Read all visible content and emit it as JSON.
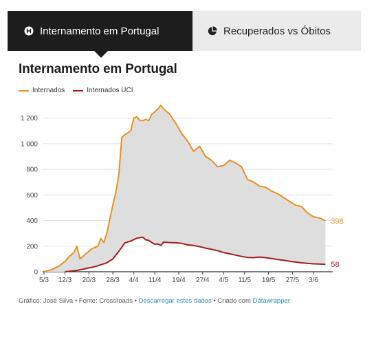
{
  "tabs": [
    {
      "label": "Internamento em Portugal",
      "icon": "globe-icon",
      "active": true
    },
    {
      "label": "Recuperados vs Óbitos",
      "icon": "pie-chart-icon",
      "active": false
    }
  ],
  "footer": {
    "prefix": "Gráfico: José Silva • Fonte: Crossroads • ",
    "download_link": "Descarregar estes dados",
    "middle": " • Criado com ",
    "datawrapper_link": "Datawrapper"
  },
  "colors": {
    "internados": "#e8911f",
    "uci": "#a31d1d",
    "fill": "#dedede",
    "link": "#2a8fb0"
  },
  "chart_data": {
    "type": "line",
    "title": "Internamento em Portugal",
    "xlabel": "",
    "ylabel": "",
    "ylim": [
      0,
      1300
    ],
    "yticks": [
      0,
      200,
      400,
      600,
      800,
      1000,
      1200
    ],
    "ytick_labels": [
      "0",
      "200",
      "400",
      "600",
      "800",
      "1 000",
      "1 200"
    ],
    "x_start": "5/3",
    "xticks": [
      {
        "day": 0,
        "label": "5/3"
      },
      {
        "day": 7,
        "label": "12/3"
      },
      {
        "day": 15,
        "label": "20/3"
      },
      {
        "day": 23,
        "label": "28/3"
      },
      {
        "day": 30,
        "label": "4/4"
      },
      {
        "day": 37,
        "label": "11/4"
      },
      {
        "day": 45,
        "label": "19/4"
      },
      {
        "day": 53,
        "label": "27/4"
      },
      {
        "day": 60,
        "label": "4/5"
      },
      {
        "day": 67,
        "label": "11/5"
      },
      {
        "day": 75,
        "label": "19/5"
      },
      {
        "day": 83,
        "label": "27/5"
      },
      {
        "day": 90,
        "label": "3/6"
      }
    ],
    "x_range": [
      0,
      96
    ],
    "legend_position": "top-left",
    "grid": true,
    "area_between_series": true,
    "series": [
      {
        "name": "Internados",
        "color": "#e8911f",
        "end_label": "398",
        "points": [
          [
            0,
            0
          ],
          [
            3,
            20
          ],
          [
            5,
            45
          ],
          [
            7,
            80
          ],
          [
            8,
            110
          ],
          [
            10,
            150
          ],
          [
            11,
            200
          ],
          [
            12,
            100
          ],
          [
            14,
            140
          ],
          [
            16,
            180
          ],
          [
            18,
            200
          ],
          [
            19,
            260
          ],
          [
            20,
            230
          ],
          [
            21,
            300
          ],
          [
            23,
            520
          ],
          [
            24,
            620
          ],
          [
            25,
            760
          ],
          [
            26,
            1050
          ],
          [
            27,
            1070
          ],
          [
            29,
            1100
          ],
          [
            30,
            1200
          ],
          [
            31,
            1210
          ],
          [
            32,
            1180
          ],
          [
            33,
            1180
          ],
          [
            34,
            1190
          ],
          [
            35,
            1180
          ],
          [
            36,
            1230
          ],
          [
            38,
            1270
          ],
          [
            39,
            1300
          ],
          [
            40,
            1270
          ],
          [
            42,
            1230
          ],
          [
            44,
            1160
          ],
          [
            46,
            1080
          ],
          [
            48,
            1020
          ],
          [
            50,
            940
          ],
          [
            52,
            980
          ],
          [
            54,
            900
          ],
          [
            56,
            870
          ],
          [
            58,
            820
          ],
          [
            60,
            830
          ],
          [
            62,
            870
          ],
          [
            64,
            850
          ],
          [
            66,
            820
          ],
          [
            68,
            720
          ],
          [
            70,
            700
          ],
          [
            72,
            670
          ],
          [
            74,
            660
          ],
          [
            76,
            630
          ],
          [
            78,
            610
          ],
          [
            80,
            580
          ],
          [
            82,
            550
          ],
          [
            84,
            520
          ],
          [
            86,
            510
          ],
          [
            88,
            460
          ],
          [
            90,
            430
          ],
          [
            92,
            420
          ],
          [
            94,
            398
          ]
        ]
      },
      {
        "name": "Internados UCI",
        "color": "#a31d1d",
        "end_label": "58",
        "points": [
          [
            7,
            0
          ],
          [
            9,
            5
          ],
          [
            11,
            10
          ],
          [
            13,
            20
          ],
          [
            15,
            30
          ],
          [
            17,
            40
          ],
          [
            19,
            55
          ],
          [
            21,
            70
          ],
          [
            23,
            100
          ],
          [
            25,
            160
          ],
          [
            27,
            225
          ],
          [
            29,
            240
          ],
          [
            31,
            262
          ],
          [
            33,
            270
          ],
          [
            34,
            250
          ],
          [
            35,
            245
          ],
          [
            36,
            228
          ],
          [
            37,
            215
          ],
          [
            38,
            218
          ],
          [
            39,
            205
          ],
          [
            40,
            232
          ],
          [
            42,
            228
          ],
          [
            44,
            226
          ],
          [
            46,
            222
          ],
          [
            48,
            210
          ],
          [
            50,
            205
          ],
          [
            52,
            196
          ],
          [
            54,
            185
          ],
          [
            56,
            175
          ],
          [
            58,
            165
          ],
          [
            60,
            150
          ],
          [
            62,
            140
          ],
          [
            64,
            130
          ],
          [
            66,
            120
          ],
          [
            68,
            112
          ],
          [
            70,
            110
          ],
          [
            72,
            115
          ],
          [
            74,
            110
          ],
          [
            76,
            103
          ],
          [
            78,
            96
          ],
          [
            80,
            90
          ],
          [
            82,
            82
          ],
          [
            84,
            76
          ],
          [
            86,
            70
          ],
          [
            88,
            66
          ],
          [
            90,
            62
          ],
          [
            92,
            60
          ],
          [
            94,
            58
          ]
        ]
      }
    ]
  }
}
